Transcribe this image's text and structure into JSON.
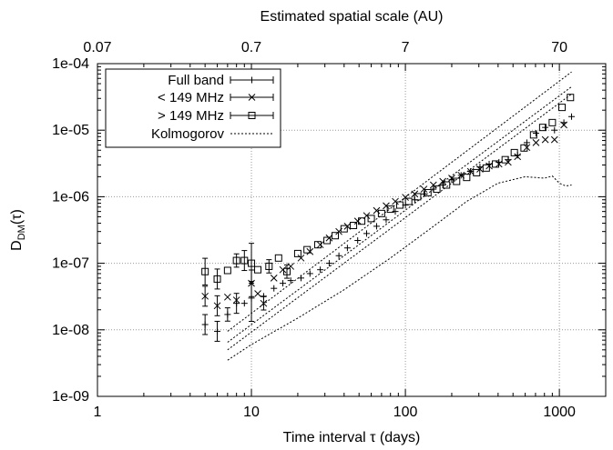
{
  "chart_data": {
    "type": "scatter",
    "title": "",
    "xlabel": "Time interval τ (days)",
    "x2label": "Estimated spatial scale (AU)",
    "ylabel_main": "D",
    "ylabel_sub": "DM",
    "ylabel_suffix": "(τ)",
    "xscale": "log",
    "yscale": "log",
    "xlim": [
      1,
      2000
    ],
    "ylim": [
      1e-09,
      0.0001
    ],
    "grid": true,
    "legend_position": "top-left",
    "xticks": [
      {
        "value": 1,
        "label": "1"
      },
      {
        "value": 10,
        "label": "10"
      },
      {
        "value": 100,
        "label": "100"
      },
      {
        "value": 1000,
        "label": "1000"
      }
    ],
    "x2ticks": [
      {
        "value": 1,
        "label": "0.07"
      },
      {
        "value": 10,
        "label": "0.7"
      },
      {
        "value": 100,
        "label": "7"
      },
      {
        "value": 1000,
        "label": "70"
      }
    ],
    "yticks": [
      {
        "value": 1e-09,
        "label": "1e-09"
      },
      {
        "value": 1e-08,
        "label": "1e-08"
      },
      {
        "value": 1e-07,
        "label": "1e-07"
      },
      {
        "value": 1e-06,
        "label": "1e-06"
      },
      {
        "value": 1e-05,
        "label": "1e-05"
      },
      {
        "value": 0.0001,
        "label": "1e-04"
      }
    ],
    "series": [
      {
        "name": "Full band",
        "marker": "plus",
        "x": [
          5,
          6,
          7,
          8,
          9,
          10,
          12,
          14,
          16,
          18,
          21,
          24,
          28,
          32,
          37,
          42,
          49,
          56,
          65,
          75,
          86,
          100,
          115,
          132,
          152,
          175,
          200,
          230,
          265,
          305,
          350,
          405,
          465,
          535,
          615,
          705,
          810,
          930,
          1070,
          1200
        ],
        "y": [
          1.2e-08,
          9.5e-09,
          1.7e-08,
          2.5e-08,
          2.5e-08,
          3e-08,
          3.2e-08,
          4.2e-08,
          5e-08,
          5.5e-08,
          6e-08,
          7e-08,
          8e-08,
          1e-07,
          1.3e-07,
          1.7e-07,
          2.2e-07,
          2.8e-07,
          3.6e-07,
          4.5e-07,
          6e-07,
          7.5e-07,
          9e-07,
          1.1e-06,
          1.3e-06,
          1.5e-06,
          1.8e-06,
          2.1e-06,
          2.4e-06,
          2.8e-06,
          3.1e-06,
          3.3e-06,
          3.6e-06,
          4.2e-06,
          6.5e-06,
          9e-06,
          1.1e-05,
          1e-05,
          1.3e-05,
          1.6e-05
        ],
        "err_low": [
          0.15,
          0.15,
          0.1,
          0.15,
          0,
          0.35,
          0,
          0,
          0,
          0,
          0,
          0,
          0,
          0,
          0,
          0,
          0,
          0,
          0,
          0,
          0,
          0,
          0,
          0,
          0,
          0,
          0,
          0,
          0,
          0,
          0,
          0,
          0,
          0,
          0,
          0,
          0,
          0,
          0,
          0
        ],
        "err_high": [
          0.15,
          0.15,
          0.1,
          0.15,
          0,
          0.25,
          0,
          0,
          0,
          0,
          0,
          0,
          0,
          0,
          0,
          0,
          0,
          0,
          0,
          0,
          0,
          0,
          0,
          0,
          0,
          0,
          0,
          0,
          0,
          0,
          0,
          0,
          0,
          0,
          0,
          0,
          0,
          0,
          0,
          0
        ]
      },
      {
        "name": "< 149 MHz",
        "marker": "cross",
        "x": [
          5,
          6,
          7,
          8,
          10,
          11,
          12,
          14,
          16,
          18,
          21,
          24,
          28,
          32,
          37,
          42,
          49,
          56,
          65,
          75,
          86,
          100,
          115,
          132,
          152,
          175,
          200,
          230,
          265,
          305,
          350,
          405,
          465,
          535,
          615,
          705,
          810,
          930,
          1070
        ],
        "y": [
          3.2e-08,
          2.3e-08,
          3.1e-08,
          2.8e-08,
          5e-08,
          3.5e-08,
          2.5e-08,
          6e-08,
          8e-08,
          9e-08,
          1.2e-07,
          1.5e-07,
          1.9e-07,
          2.4e-07,
          3e-07,
          3.6e-07,
          4.3e-07,
          5.2e-07,
          6.2e-07,
          7.3e-07,
          8.5e-07,
          9.8e-07,
          1.1e-06,
          1.3e-06,
          1.5e-06,
          1.7e-06,
          1.9e-06,
          2.1e-06,
          2.4e-06,
          2.6e-06,
          2.9e-06,
          3.1e-06,
          3.3e-06,
          4e-06,
          5.5e-06,
          6.5e-06,
          7.2e-06,
          7.2e-06,
          1.2e-05
        ],
        "err_low": [
          0.15,
          0.15,
          0,
          0,
          0.2,
          0,
          0.1,
          0,
          0,
          0,
          0,
          0,
          0,
          0,
          0,
          0,
          0,
          0,
          0,
          0,
          0,
          0,
          0,
          0,
          0,
          0,
          0,
          0,
          0,
          0,
          0,
          0,
          0,
          0,
          0,
          0,
          0,
          0,
          0
        ],
        "err_high": [
          0.15,
          0.15,
          0,
          0,
          0.2,
          0,
          0.1,
          0,
          0,
          0,
          0,
          0,
          0,
          0,
          0,
          0,
          0,
          0,
          0,
          0,
          0,
          0,
          0,
          0,
          0,
          0,
          0,
          0,
          0,
          0,
          0,
          0,
          0,
          0,
          0,
          0,
          0,
          0,
          0
        ]
      },
      {
        "name": "> 149 MHz",
        "marker": "square",
        "x": [
          5,
          6,
          7,
          8,
          9,
          10,
          11,
          13,
          15,
          17,
          20,
          23,
          27,
          31,
          35,
          40,
          46,
          52,
          60,
          70,
          80,
          92,
          105,
          120,
          140,
          160,
          185,
          215,
          250,
          290,
          335,
          385,
          445,
          510,
          590,
          680,
          780,
          900,
          1040,
          1180
        ],
        "y": [
          7.5e-08,
          5.8e-08,
          7.8e-08,
          1.1e-07,
          1.1e-07,
          1e-07,
          8e-08,
          9e-08,
          1.2e-07,
          7.5e-08,
          1.4e-07,
          1.6e-07,
          1.9e-07,
          2.2e-07,
          2.6e-07,
          3.3e-07,
          3.7e-07,
          4.3e-07,
          4.7e-07,
          5.6e-07,
          6.5e-07,
          7.5e-07,
          8.5e-07,
          1e-06,
          1.15e-06,
          1.3e-06,
          1.5e-06,
          1.7e-06,
          1.95e-06,
          2.3e-06,
          2.7e-06,
          3.1e-06,
          3.6e-06,
          4.6e-06,
          5.4e-06,
          8.5e-06,
          1.1e-05,
          1.3e-05,
          2.2e-05,
          3.1e-05
        ],
        "err_low": [
          0.2,
          0.15,
          0,
          0.1,
          0.15,
          0.3,
          0,
          0.1,
          0,
          0.1,
          0,
          0,
          0,
          0,
          0,
          0,
          0,
          0,
          0,
          0,
          0,
          0,
          0,
          0,
          0,
          0,
          0,
          0,
          0,
          0,
          0,
          0,
          0,
          0,
          0,
          0,
          0,
          0,
          0,
          0
        ],
        "err_high": [
          0.2,
          0.15,
          0,
          0.1,
          0.15,
          0.3,
          0,
          0.1,
          0,
          0.1,
          0,
          0,
          0,
          0,
          0,
          0,
          0,
          0,
          0,
          0,
          0,
          0,
          0,
          0,
          0,
          0,
          0,
          0,
          0,
          0,
          0,
          0,
          0,
          0,
          0,
          0,
          0,
          0,
          0,
          0
        ]
      }
    ],
    "reference_lines": [
      {
        "name": "Kolmogorov",
        "label_in_legend": true,
        "style": "dotted",
        "x": [
          7,
          1200
        ],
        "y": [
          9.5e-09,
          7.5e-05
        ]
      },
      {
        "name": "Kolmogorov",
        "label_in_legend": false,
        "style": "dotted",
        "x": [
          7,
          1200
        ],
        "y": [
          6.5e-09,
          4.5e-05
        ]
      },
      {
        "name": "Kolmogorov",
        "label_in_legend": false,
        "style": "dotted",
        "x": [
          7,
          1200
        ],
        "y": [
          5e-09,
          3.5e-05
        ]
      }
    ],
    "noisy_curve": {
      "style": "dotted",
      "x": [
        7,
        10,
        20,
        40,
        80,
        150,
        250,
        400,
        600,
        800,
        900,
        1000,
        1100,
        1200
      ],
      "y": [
        3.5e-09,
        6e-09,
        1.5e-08,
        4e-08,
        1.2e-07,
        3.5e-07,
        8.5e-07,
        1.6e-06,
        2e-06,
        1.9e-06,
        2.05e-06,
        1.6e-06,
        1.45e-06,
        1.5e-06
      ]
    }
  }
}
